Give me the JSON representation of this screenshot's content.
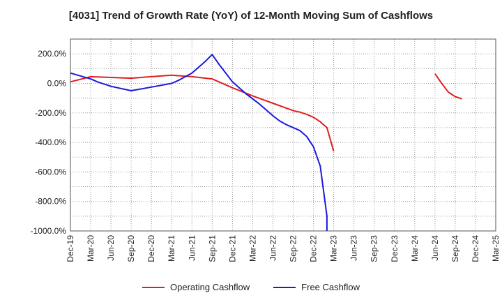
{
  "chart_data": {
    "type": "line",
    "title": "[4031]  Trend of Growth Rate (YoY) of 12-Month Moving Sum of Cashflows",
    "xlabel": "",
    "ylabel": "",
    "x_labels": [
      "Dec-19",
      "Mar-20",
      "Jun-20",
      "Sep-20",
      "Dec-20",
      "Mar-21",
      "Jun-21",
      "Sep-21",
      "Dec-21",
      "Mar-22",
      "Jun-22",
      "Sep-22",
      "Dec-22",
      "Mar-23",
      "Jun-23",
      "Sep-23",
      "Dec-23",
      "Mar-24",
      "Jun-24",
      "Sep-24",
      "Dec-24",
      "Mar-25"
    ],
    "y_ticks": [
      200,
      0,
      -200,
      -400,
      -600,
      -800,
      -1000
    ],
    "y_tick_labels": [
      "200.0%",
      "0.0%",
      "-200.0%",
      "-400.0%",
      "-600.0%",
      "-800.0%",
      "-1000.0%"
    ],
    "ylim": [
      -1000,
      300
    ],
    "grid": true,
    "legend_position": "bottom-center",
    "series": [
      {
        "name": "Operating Cashflow",
        "color": "#e01e1e",
        "segments": [
          [
            [
              "Dec-19",
              10
            ],
            [
              "Mar-20",
              45
            ],
            [
              "Jun-20",
              40
            ],
            [
              "Sep-20",
              35
            ],
            [
              "Dec-20",
              45
            ],
            [
              "Mar-21",
              55
            ],
            [
              "Jun-21",
              45
            ],
            [
              "Sep-21",
              30
            ],
            [
              "Dec-21",
              -30
            ],
            [
              "Mar-22",
              -85
            ],
            [
              "Jun-22",
              -135
            ],
            [
              "Sep-22",
              -185
            ],
            [
              "Oct-22",
              -195
            ],
            [
              "Nov-22",
              -210
            ],
            [
              "Dec-22",
              -230
            ],
            [
              "Jan-23",
              -260
            ],
            [
              "Feb-23",
              -300
            ],
            [
              "Mar-23",
              -460
            ]
          ],
          [
            [
              "Jun-24",
              65
            ],
            [
              "Jul-24",
              0
            ],
            [
              "Aug-24",
              -60
            ],
            [
              "Sep-24",
              -90
            ],
            [
              "Oct-24",
              -105
            ]
          ]
        ]
      },
      {
        "name": "Free Cashflow",
        "color": "#1a1adb",
        "segments": [
          [
            [
              "Dec-19",
              70
            ],
            [
              "Mar-20",
              30
            ],
            [
              "Apr-20",
              10
            ],
            [
              "Jun-20",
              -20
            ],
            [
              "Sep-20",
              -50
            ],
            [
              "Dec-20",
              -25
            ],
            [
              "Mar-21",
              0
            ],
            [
              "Apr-21",
              20
            ],
            [
              "Jun-21",
              70
            ],
            [
              "Aug-21",
              150
            ],
            [
              "Sep-21",
              195
            ],
            [
              "Oct-21",
              130
            ],
            [
              "Dec-21",
              10
            ],
            [
              "Feb-22",
              -70
            ],
            [
              "Apr-22",
              -140
            ],
            [
              "May-22",
              -180
            ],
            [
              "Jun-22",
              -220
            ],
            [
              "Jul-22",
              -255
            ],
            [
              "Aug-22",
              -280
            ],
            [
              "Oct-22",
              -320
            ],
            [
              "Nov-22",
              -360
            ],
            [
              "Dec-22",
              -430
            ],
            [
              "Jan-23",
              -560
            ],
            [
              "Feb-23",
              -900
            ],
            [
              "Feb-23",
              -1000
            ]
          ]
        ]
      }
    ]
  }
}
